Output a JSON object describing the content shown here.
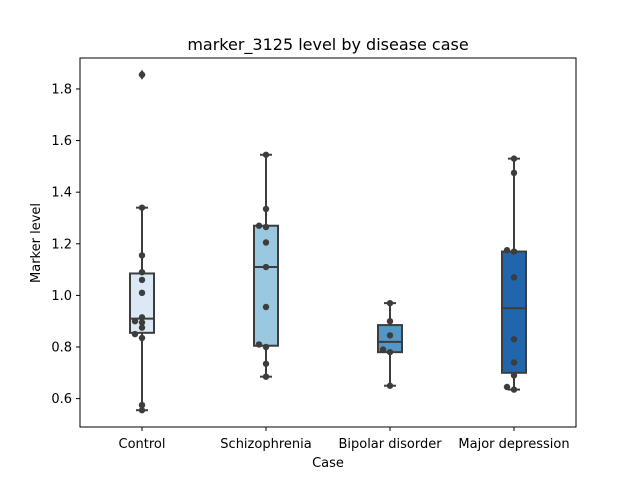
{
  "chart_data": {
    "type": "box",
    "title": "marker_3125 level by disease case",
    "xlabel": "Case",
    "ylabel": "Marker level",
    "ylim": [
      0.49,
      1.92
    ],
    "yticks": [
      0.6,
      0.8,
      1.0,
      1.2,
      1.4,
      1.6,
      1.8
    ],
    "ytick_labels": [
      "0.6",
      "0.8",
      "1.0",
      "1.2",
      "1.4",
      "1.6",
      "1.8"
    ],
    "grid": false,
    "legend": "none",
    "categories": [
      "Control",
      "Schizophrenia",
      "Bipolar disorder",
      "Major depression"
    ],
    "boxes": [
      {
        "category": "Control",
        "color": "#dbe9f6",
        "q1": 0.855,
        "median": 0.91,
        "q3": 1.085,
        "whisker_low": 0.555,
        "whisker_high": 1.34,
        "outliers": [
          1.855
        ],
        "points": [
          0.555,
          0.575,
          0.835,
          0.85,
          0.875,
          0.895,
          0.9,
          0.915,
          1.01,
          1.06,
          1.09,
          1.155,
          1.34,
          1.855
        ]
      },
      {
        "category": "Schizophrenia",
        "color": "#9ac8e0",
        "q1": 0.805,
        "median": 1.11,
        "q3": 1.27,
        "whisker_low": 0.685,
        "whisker_high": 1.545,
        "outliers": [],
        "points": [
          0.685,
          0.735,
          0.8,
          0.81,
          0.955,
          1.11,
          1.205,
          1.265,
          1.27,
          1.335,
          1.545
        ]
      },
      {
        "category": "Bipolar disorder",
        "color": "#5297c6",
        "q1": 0.78,
        "median": 0.82,
        "q3": 0.885,
        "whisker_low": 0.65,
        "whisker_high": 0.97,
        "outliers": [],
        "points": [
          0.65,
          0.78,
          0.79,
          0.845,
          0.9,
          0.97
        ]
      },
      {
        "category": "Major depression",
        "color": "#2166ac",
        "q1": 0.7,
        "median": 0.95,
        "q3": 1.17,
        "whisker_low": 0.635,
        "whisker_high": 1.53,
        "outliers": [],
        "points": [
          0.635,
          0.645,
          0.69,
          0.74,
          0.83,
          1.07,
          1.17,
          1.175,
          1.475,
          1.53
        ]
      }
    ]
  }
}
